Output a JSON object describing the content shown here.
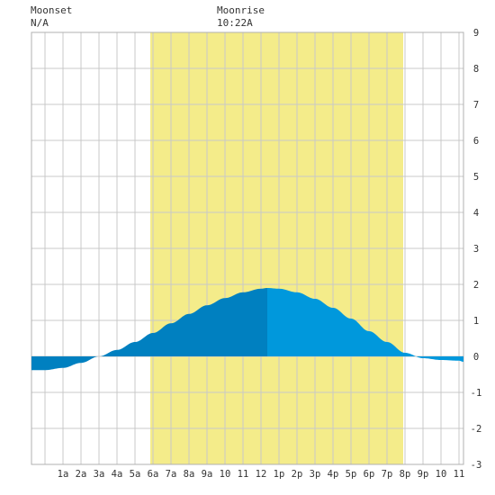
{
  "moonset": {
    "label": "Moonset",
    "time": "N/A"
  },
  "moonrise": {
    "label": "Moonrise",
    "time": "10:22A"
  },
  "colors": {
    "daylight": "#f4ec8a",
    "grid": "#c8c8c8",
    "tide_dark": "#0080c0",
    "tide_light": "#0098dc",
    "text": "#333333"
  },
  "chart_data": {
    "type": "area",
    "x_tick_labels": [
      "1a",
      "2a",
      "3a",
      "4a",
      "5a",
      "6a",
      "7a",
      "8a",
      "9a",
      "10",
      "11",
      "12",
      "1p",
      "2p",
      "3p",
      "4p",
      "5p",
      "6p",
      "7p",
      "8p",
      "9p",
      "10",
      "11"
    ],
    "xlim_hours": [
      -0.75,
      23.25
    ],
    "ylim": [
      -3,
      9
    ],
    "y_ticks": [
      -3,
      -2,
      -1,
      0,
      1,
      2,
      3,
      4,
      5,
      6,
      7,
      8,
      9
    ],
    "daylight_hours": [
      5.85,
      19.9
    ],
    "moonrise_hour": 10.37,
    "series": [
      {
        "x_hours": [
          -0.75,
          0,
          1,
          2,
          3,
          4,
          5,
          6,
          7,
          8,
          9,
          10,
          11,
          12,
          12.35,
          13,
          14,
          15,
          16,
          17,
          18,
          19,
          20,
          21,
          22,
          23,
          23.25
        ],
        "values": [
          -0.38,
          -0.38,
          -0.32,
          -0.18,
          0.0,
          0.18,
          0.4,
          0.65,
          0.92,
          1.18,
          1.42,
          1.62,
          1.78,
          1.88,
          1.9,
          1.88,
          1.78,
          1.6,
          1.35,
          1.05,
          0.7,
          0.4,
          0.1,
          -0.05,
          -0.1,
          -0.12,
          -0.15
        ]
      }
    ]
  }
}
